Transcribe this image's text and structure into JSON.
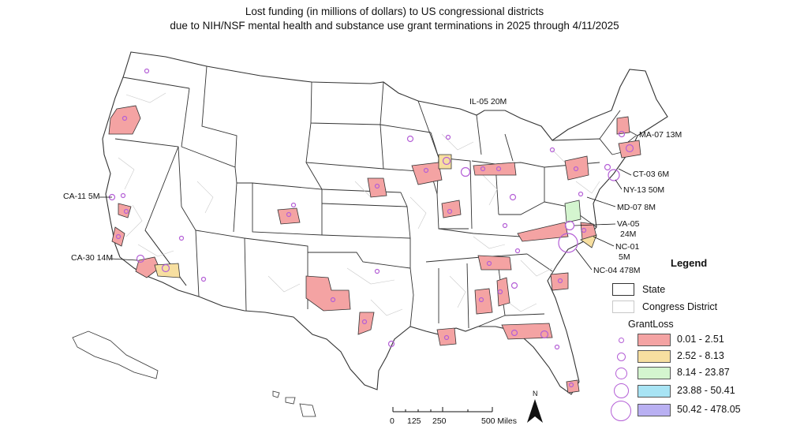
{
  "title": {
    "line1": "Lost funding (in millions of dollars) to US congressional districts",
    "line2": "due to NIH/NSF mental health and substance use grant terminations in 2025 through 4/11/2025"
  },
  "callouts": [
    {
      "id": "il05",
      "text": "IL-05 20M"
    },
    {
      "id": "ma07",
      "text": "MA-07 13M"
    },
    {
      "id": "ct03",
      "text": "CT-03 6M"
    },
    {
      "id": "ny13",
      "text": "NY-13 50M"
    },
    {
      "id": "md07",
      "text": "MD-07 8M"
    },
    {
      "id": "va05a",
      "text": "VA-05"
    },
    {
      "id": "va05b",
      "text": "24M"
    },
    {
      "id": "nc01a",
      "text": "NC-01"
    },
    {
      "id": "nc01b",
      "text": "5M"
    },
    {
      "id": "nc04",
      "text": "NC-04 478M"
    },
    {
      "id": "ca11",
      "text": "CA-11 5M"
    },
    {
      "id": "ca30",
      "text": "CA-30 14M"
    }
  ],
  "legend": {
    "title": "Legend",
    "state_label": "State",
    "district_label": "Congress District",
    "field_label": "GrantLoss",
    "classes": [
      {
        "range": "0.01 - 2.51",
        "color": "#f4a3a3"
      },
      {
        "range": "2.52 - 8.13",
        "color": "#f7dfa0"
      },
      {
        "range": "8.14 - 23.87",
        "color": "#d4f5cf"
      },
      {
        "range": "23.88 - 50.41",
        "color": "#a8e4f4"
      },
      {
        "range": "50.42 - 478.05",
        "color": "#b9b0f2"
      }
    ],
    "circle_color": "#b45fd6"
  },
  "scalebar": {
    "ticks": [
      "0",
      "125",
      "250",
      "500 Miles"
    ]
  },
  "north_label": "N",
  "colors": {
    "state_border": "#333333",
    "district_border": "#c9c9c9",
    "highlight_red": "#f4a3a3",
    "highlight_yellow": "#f7dfa0",
    "highlight_green": "#d4f5cf",
    "circle": "#b45fd6"
  }
}
